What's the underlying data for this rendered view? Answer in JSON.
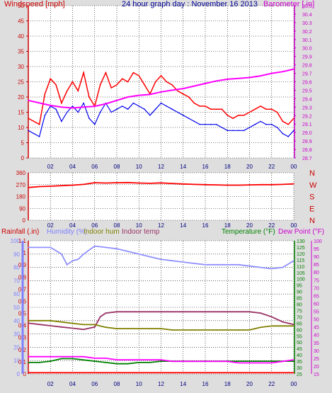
{
  "chart_data": [
    {
      "type": "line",
      "title": "24 hour graph day : November 16 2013",
      "left_axis_label": "Windspeed [mph]",
      "right_axis_label": "Barometer [ in]",
      "x": {
        "ticks": [
          "02",
          "04",
          "06",
          "08",
          "10",
          "12",
          "14",
          "16",
          "18",
          "20",
          "22",
          "00"
        ],
        "start_hour": 0,
        "end_hour": 24
      },
      "y_left": {
        "min": 0,
        "max": 50,
        "ticks": [
          0,
          5,
          10,
          15,
          20,
          25,
          30,
          35,
          40,
          45,
          50
        ]
      },
      "y_right": {
        "min": 28.7,
        "max": 30.5,
        "ticks": [
          28.7,
          28.8,
          28.9,
          29.0,
          29.1,
          29.2,
          29.3,
          29.4,
          29.5,
          29.6,
          29.7,
          29.8,
          29.9,
          30.0,
          30.1,
          30.2,
          30.3,
          30.4,
          30.5
        ]
      },
      "series": [
        {
          "name": "gust",
          "color": "#ff0000",
          "axis": "left",
          "x": [
            0,
            0.5,
            1,
            1.5,
            2,
            2.5,
            3,
            3.5,
            4,
            4.5,
            5,
            5.5,
            6,
            6.5,
            7,
            7.5,
            8,
            8.5,
            9,
            9.5,
            10,
            10.5,
            11,
            11.5,
            12,
            12.5,
            13,
            13.5,
            14,
            14.5,
            15,
            15.5,
            16,
            16.5,
            17,
            17.5,
            18,
            18.5,
            19,
            19.5,
            20,
            20.5,
            21,
            21.5,
            22,
            22.5,
            23,
            23.5,
            24
          ],
          "values": [
            13,
            12,
            11,
            21,
            26,
            24,
            18,
            22,
            25,
            22,
            28,
            20,
            17,
            24,
            28,
            23,
            24,
            26,
            25,
            28,
            27,
            24,
            21,
            25,
            27,
            25,
            24,
            22,
            21,
            20,
            18,
            17,
            17,
            16,
            16,
            16,
            14,
            13,
            14,
            14,
            15,
            16,
            17,
            16,
            16,
            15,
            12,
            11,
            13
          ]
        },
        {
          "name": "avg",
          "color": "#0000ee",
          "axis": "left",
          "x": [
            0,
            0.5,
            1,
            1.5,
            2,
            2.5,
            3,
            3.5,
            4,
            4.5,
            5,
            5.5,
            6,
            6.5,
            7,
            7.5,
            8,
            8.5,
            9,
            9.5,
            10,
            10.5,
            11,
            11.5,
            12,
            12.5,
            13,
            13.5,
            14,
            14.5,
            15,
            15.5,
            16,
            16.5,
            17,
            17.5,
            18,
            18.5,
            19,
            19.5,
            20,
            20.5,
            21,
            21.5,
            22,
            22.5,
            23,
            23.5,
            24
          ],
          "values": [
            9,
            8,
            7,
            14,
            17,
            16,
            12,
            15,
            17,
            15,
            18,
            13,
            11,
            15,
            18,
            15,
            16,
            17,
            16,
            18,
            17,
            16,
            14,
            16,
            18,
            17,
            16,
            15,
            14,
            13,
            12,
            11,
            11,
            11,
            11,
            10,
            9,
            9,
            9,
            9,
            10,
            11,
            12,
            11,
            11,
            10,
            8,
            7,
            9
          ]
        },
        {
          "name": "barometer",
          "color": "#ff00ff",
          "axis": "right",
          "x": [
            0,
            1,
            2,
            3,
            4,
            5,
            6,
            7,
            8,
            9,
            10,
            11,
            12,
            13,
            14,
            15,
            16,
            17,
            18,
            19,
            20,
            21,
            22,
            23,
            24
          ],
          "values": [
            29.38,
            29.35,
            29.32,
            29.3,
            29.29,
            29.3,
            29.31,
            29.34,
            29.38,
            29.42,
            29.44,
            29.45,
            29.48,
            29.5,
            29.52,
            29.55,
            29.58,
            29.61,
            29.63,
            29.64,
            29.65,
            29.67,
            29.7,
            29.72,
            29.75
          ]
        }
      ]
    },
    {
      "type": "line",
      "y_ticks": [
        "360",
        "270",
        "180",
        "90",
        "0"
      ],
      "y_right_ticks": [
        "N",
        "W",
        "S",
        "E",
        "N"
      ],
      "x": {
        "ticks": [
          "02",
          "04",
          "06",
          "08",
          "10",
          "12",
          "14",
          "16",
          "18",
          "20",
          "22",
          "00"
        ]
      },
      "series": [
        {
          "name": "direction",
          "color": "#ff0000",
          "x": [
            0,
            1,
            2,
            3,
            4,
            5,
            6,
            7,
            8,
            9,
            10,
            11,
            12,
            13,
            14,
            15,
            16,
            17,
            18,
            19,
            20,
            21,
            22,
            23,
            24
          ],
          "values": [
            248,
            255,
            258,
            262,
            266,
            272,
            285,
            282,
            285,
            286,
            282,
            280,
            283,
            279,
            275,
            272,
            270,
            268,
            266,
            266,
            268,
            270,
            270,
            272,
            276
          ]
        }
      ]
    },
    {
      "type": "line",
      "headers": {
        "rainfall": "Rainfall (.in)",
        "humidity": "Humidity (%)",
        "indoor_hum": "Indoor hum",
        "indoor_temp": "Indoor temp",
        "temperature": "Temperature (°F)",
        "dew_point": "Dew Point (°F)"
      },
      "x": {
        "ticks": [
          "02",
          "04",
          "06",
          "08",
          "10",
          "12",
          "14",
          "16",
          "18",
          "20",
          "22",
          "00"
        ]
      },
      "axes": {
        "rain": [
          "0",
          "0.1",
          "0.2",
          "0.3",
          "0.4",
          "0.5",
          "0.6",
          "0.7",
          "0.8",
          "0.9",
          "1",
          "1.1"
        ],
        "humidity": [
          "0",
          "10",
          "20",
          "30",
          "40",
          "50",
          "60",
          "70",
          "80",
          "90",
          "100"
        ],
        "temperature": [
          "25",
          "30",
          "35",
          "40",
          "45",
          "50",
          "55",
          "60",
          "65",
          "70",
          "75",
          "80",
          "85",
          "90",
          "95",
          "100",
          "105",
          "110",
          "115",
          "120",
          "125",
          "130"
        ],
        "dew_point": [
          "15",
          "20",
          "25",
          "30",
          "35",
          "40",
          "45",
          "50",
          "55",
          "60",
          "65",
          "70",
          "75",
          "80",
          "85",
          "90",
          "95",
          "100"
        ]
      },
      "series": [
        {
          "name": "humidity",
          "color": "#9090ff",
          "axis": "humidity",
          "x": [
            0,
            1,
            2,
            3,
            3.5,
            4,
            4.5,
            5,
            5.5,
            6,
            7,
            8,
            9,
            10,
            11,
            12,
            13,
            14,
            15,
            16,
            17,
            18,
            19,
            20,
            21,
            22,
            23,
            24
          ],
          "values": [
            95,
            95,
            95,
            90,
            82,
            85,
            86,
            90,
            93,
            96,
            95,
            94,
            92,
            90,
            88,
            86,
            85,
            84,
            83,
            82,
            82,
            82,
            82,
            81,
            80,
            79,
            80,
            85
          ]
        },
        {
          "name": "indoor temp",
          "color": "#993366",
          "axis": "temperature",
          "x": [
            0,
            1,
            2,
            3,
            4,
            5,
            6,
            6.5,
            7,
            8,
            9,
            10,
            11,
            12,
            13,
            14,
            15,
            16,
            17,
            18,
            19,
            20,
            21,
            22,
            23,
            24
          ],
          "values": [
            65,
            64,
            63,
            62,
            61,
            60,
            62,
            70,
            73,
            74,
            74,
            74,
            74,
            74,
            74,
            74,
            74,
            74,
            74,
            74,
            74,
            74,
            73,
            70,
            66,
            64
          ]
        },
        {
          "name": "indoor hum",
          "color": "#808000",
          "axis": "humidity",
          "x": [
            0,
            1,
            2,
            3,
            4,
            5,
            6,
            7,
            8,
            9,
            10,
            11,
            12,
            13,
            14,
            15,
            16,
            17,
            18,
            19,
            20,
            21,
            22,
            23,
            24
          ],
          "values": [
            40,
            40,
            40,
            39,
            38,
            37,
            37,
            35,
            34,
            34,
            34,
            34,
            34,
            33,
            33,
            33,
            33,
            33,
            33,
            33,
            33,
            35,
            36,
            36,
            36
          ]
        },
        {
          "name": "temperature",
          "color": "#008000",
          "axis": "temperature",
          "x": [
            0,
            1,
            2,
            3,
            4,
            5,
            6,
            7,
            8,
            9,
            10,
            11,
            12,
            13,
            14,
            15,
            16,
            17,
            18,
            19,
            20,
            21,
            22,
            23,
            24
          ],
          "values": [
            34,
            34,
            35,
            37,
            37,
            36,
            35,
            34,
            33,
            33,
            34,
            34,
            35,
            35,
            35,
            35,
            35,
            35,
            35,
            35,
            35,
            35,
            35,
            35,
            35
          ]
        },
        {
          "name": "dew point",
          "color": "#ff00ff",
          "axis": "dew_point",
          "x": [
            0,
            1,
            2,
            3,
            4,
            5,
            6,
            7,
            8,
            9,
            10,
            11,
            12,
            13,
            14,
            15,
            16,
            17,
            18,
            19,
            20,
            21,
            22,
            23,
            24
          ],
          "values": [
            26,
            26,
            26,
            26,
            26,
            26,
            25,
            25,
            24,
            24,
            24,
            24,
            24,
            23,
            23,
            23,
            23,
            23,
            23,
            22,
            22,
            22,
            22,
            23,
            24
          ]
        },
        {
          "name": "rainfall",
          "color": "#ff0000",
          "axis": "rain",
          "x": [
            0,
            4,
            8,
            12,
            16,
            20,
            24
          ],
          "values": [
            0.01,
            0.01,
            0.01,
            0.01,
            0.01,
            0.01,
            0.01
          ]
        }
      ]
    }
  ]
}
